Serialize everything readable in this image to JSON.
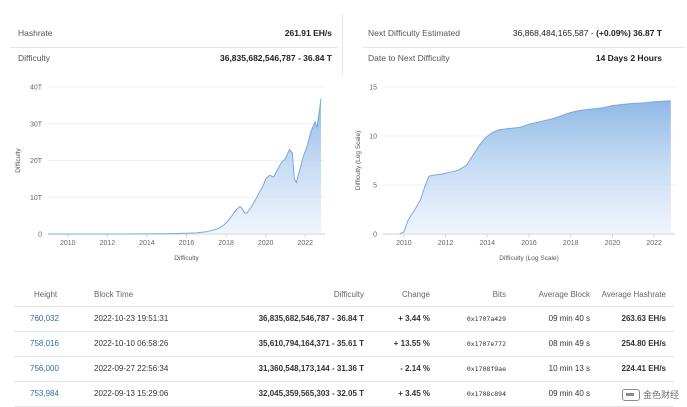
{
  "stats": {
    "hashrate_label": "Hashrate",
    "hashrate_value": "261.91 EH/s",
    "difficulty_label": "Difficulty",
    "difficulty_value": "36,835,682,546,787 - 36.84 T",
    "next_label": "Next Difficulty Estimated",
    "next_value_number": "36,868,484,165,587 -",
    "next_value_change": "(+0.09%) 36.87 T",
    "date_label": "Date to Next Difficulty",
    "date_value": "14 Days 2 Hours"
  },
  "chart_data": [
    {
      "type": "area",
      "title": "",
      "xlabel": "Difficulty",
      "ylabel": "Difficulty",
      "x_ticks": [
        "2010",
        "2012",
        "2014",
        "2016",
        "2018",
        "2020",
        "2022"
      ],
      "y_ticks": [
        "0",
        "10T",
        "20T",
        "30T",
        "40T"
      ],
      "xlim": [
        2009.0,
        2023.0
      ],
      "ylim": [
        0,
        40
      ],
      "y_unit": "T",
      "x": [
        2009.0,
        2010.0,
        2012.0,
        2014.0,
        2015.0,
        2016.0,
        2016.5,
        2017.0,
        2017.3,
        2017.6,
        2017.9,
        2018.1,
        2018.3,
        2018.5,
        2018.7,
        2018.8,
        2018.9,
        2019.0,
        2019.1,
        2019.3,
        2019.5,
        2019.7,
        2019.9,
        2020.0,
        2020.2,
        2020.4,
        2020.6,
        2020.8,
        2021.0,
        2021.2,
        2021.35,
        2021.45,
        2021.55,
        2021.7,
        2021.9,
        2022.1,
        2022.3,
        2022.5,
        2022.6,
        2022.7,
        2022.8
      ],
      "values": [
        0,
        0,
        0,
        0.02,
        0.05,
        0.2,
        0.3,
        0.6,
        1.0,
        1.5,
        2.5,
        3.5,
        5.0,
        6.5,
        7.5,
        7.0,
        6.0,
        5.6,
        6.0,
        7.5,
        9.5,
        11.5,
        13.5,
        15.0,
        16.0,
        15.5,
        17.5,
        19.5,
        20.5,
        23.0,
        22.0,
        15.0,
        14.0,
        17.0,
        21.0,
        24.0,
        28.0,
        30.5,
        29.0,
        33.0,
        36.84
      ]
    },
    {
      "type": "area",
      "title": "",
      "xlabel": "Difficulty (Log Scale)",
      "ylabel": "Difficulty (Log Scale)",
      "x_ticks": [
        "2010",
        "2012",
        "2014",
        "2016",
        "2018",
        "2020",
        "2022"
      ],
      "y_ticks": [
        "0",
        "5",
        "10",
        "15"
      ],
      "xlim": [
        2009.0,
        2023.0
      ],
      "ylim": [
        0,
        15
      ],
      "log_scale": true,
      "x": [
        2009.8,
        2010.0,
        2010.2,
        2010.5,
        2010.8,
        2011.0,
        2011.2,
        2011.4,
        2011.8,
        2012.2,
        2012.6,
        2013.0,
        2013.3,
        2013.6,
        2013.9,
        2014.2,
        2014.5,
        2014.8,
        2015.2,
        2015.6,
        2016.0,
        2016.4,
        2016.8,
        2017.2,
        2017.6,
        2018.0,
        2018.4,
        2018.8,
        2019.2,
        2019.6,
        2020.0,
        2020.4,
        2020.8,
        2021.2,
        2021.6,
        2022.0,
        2022.4,
        2022.8
      ],
      "values": [
        0,
        0.2,
        1.4,
        2.4,
        3.5,
        4.8,
        5.9,
        6.0,
        6.1,
        6.3,
        6.5,
        7.0,
        8.0,
        9.0,
        9.8,
        10.3,
        10.6,
        10.7,
        10.8,
        10.9,
        11.2,
        11.4,
        11.6,
        11.8,
        12.1,
        12.4,
        12.6,
        12.7,
        12.8,
        12.9,
        13.1,
        13.2,
        13.3,
        13.35,
        13.4,
        13.5,
        13.55,
        13.6
      ]
    }
  ],
  "table": {
    "headers": [
      "Height",
      "Block Time",
      "Difficulty",
      "Change",
      "Bits",
      "Average Block",
      "Average Hashrate"
    ],
    "rows": [
      {
        "height": "760,032",
        "time": "2022-10-23 19:51:31",
        "difficulty": "36,835,682,546,787 - 36.84 T",
        "change": "+ 3.44 %",
        "change_dir": "pos",
        "bits": "0x1707a429",
        "avg_block": "09 min 40 s",
        "avg_hashrate": "263.63 EH/s"
      },
      {
        "height": "758,016",
        "time": "2022-10-10 06:58:26",
        "difficulty": "35,610,794,164,371 - 35.61 T",
        "change": "+ 13.55 %",
        "change_dir": "pos",
        "bits": "0x1707e772",
        "avg_block": "08 min 49 s",
        "avg_hashrate": "254.80 EH/s"
      },
      {
        "height": "756,000",
        "time": "2022-09-27 22:56:34",
        "difficulty": "31,360,548,173,144 - 31.36 T",
        "change": "- 2.14 %",
        "change_dir": "neg",
        "bits": "0x1708f9ae",
        "avg_block": "10 min 13 s",
        "avg_hashrate": "224.41 EH/s"
      },
      {
        "height": "753,984",
        "time": "2022-09-13 15:29:06",
        "difficulty": "32,045,359,565,303 - 32.05 T",
        "change": "+ 3.45 %",
        "change_dir": "pos",
        "bits": "0x1708c894",
        "avg_block": "09 min 40 s",
        "avg_hashrate": ""
      }
    ]
  },
  "watermark_text": "金色财经",
  "colors": {
    "accent": "#2f6ea8",
    "positive": "#2d9c46",
    "negative": "#d9362f",
    "area_top": "#8fb8e6",
    "area_bottom": "#e4eefa"
  }
}
